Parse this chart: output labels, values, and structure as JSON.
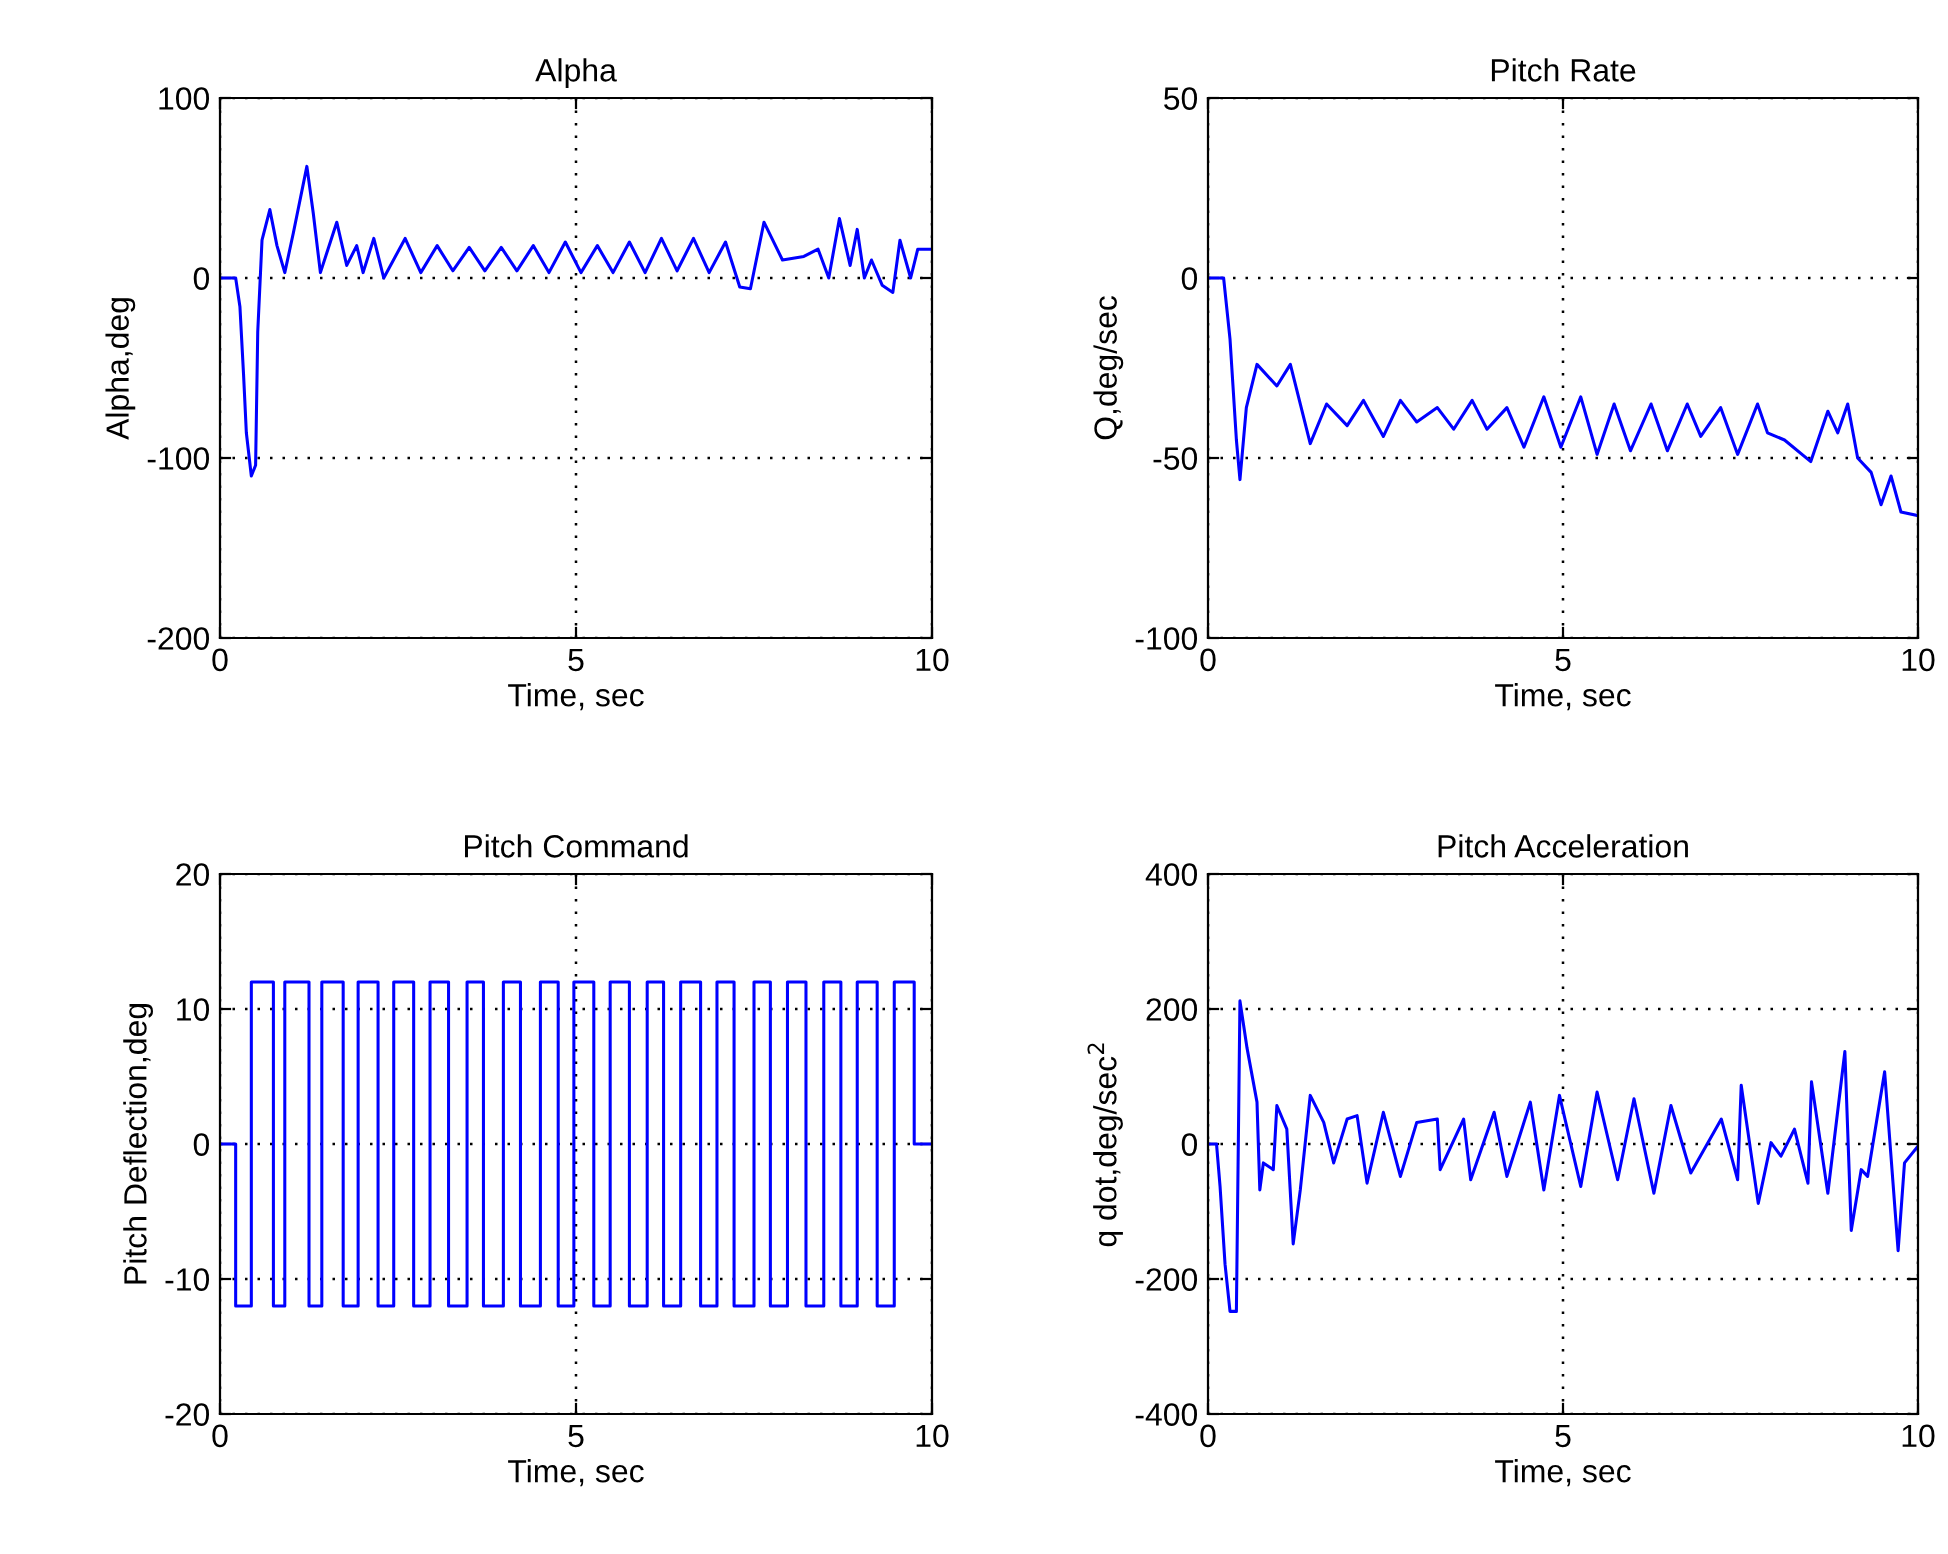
{
  "chart_data": [
    {
      "type": "line",
      "title": "Alpha",
      "xlabel": "Time, sec",
      "ylabel": "Alpha,deg",
      "xlim": [
        0,
        10
      ],
      "xticks": [
        0,
        5,
        10
      ],
      "ylim": [
        -200,
        100
      ],
      "yticks": [
        -200,
        -100,
        0,
        100
      ],
      "grid": true,
      "series": [
        {
          "color": "#0000ff",
          "x": [
            0,
            0.22,
            0.28,
            0.33,
            0.37,
            0.44,
            0.5,
            0.53,
            0.59,
            0.7,
            0.8,
            0.91,
            1.03,
            1.22,
            1.31,
            1.41,
            1.64,
            1.78,
            1.92,
            2.01,
            2.16,
            2.3,
            2.6,
            2.82,
            3.05,
            3.27,
            3.5,
            3.72,
            3.95,
            4.17,
            4.4,
            4.62,
            4.85,
            5.07,
            5.3,
            5.52,
            5.75,
            5.97,
            6.2,
            6.42,
            6.65,
            6.87,
            7.1,
            7.3,
            7.45,
            7.64,
            7.9,
            8.2,
            8.4,
            8.55,
            8.7,
            8.85,
            8.95,
            9.05,
            9.15,
            9.3,
            9.45,
            9.55,
            9.7,
            9.8,
            10
          ],
          "values": [
            0,
            0,
            -16,
            -53,
            -86,
            -110,
            -104,
            -30,
            21,
            38,
            18,
            3,
            25,
            62,
            36,
            3,
            31,
            7,
            18,
            3,
            22,
            0,
            22,
            3,
            18,
            4,
            17,
            4,
            17,
            4,
            18,
            3,
            20,
            3,
            18,
            3,
            20,
            3,
            22,
            4,
            22,
            3,
            20,
            -5,
            -6,
            31,
            10,
            12,
            16,
            0,
            33,
            7,
            27,
            0,
            10,
            -4,
            -8,
            21,
            0,
            16,
            16
          ]
        }
      ]
    },
    {
      "type": "line",
      "title": "Pitch Rate",
      "xlabel": "Time, sec",
      "ylabel": "Q,deg/sec",
      "xlim": [
        0,
        10
      ],
      "xticks": [
        0,
        5,
        10
      ],
      "ylim": [
        -100,
        50
      ],
      "yticks": [
        -100,
        -50,
        0,
        50
      ],
      "grid": true,
      "series": [
        {
          "color": "#0000ff",
          "x": [
            0,
            0.22,
            0.31,
            0.4,
            0.45,
            0.54,
            0.69,
            0.97,
            1.16,
            1.44,
            1.67,
            1.96,
            2.19,
            2.47,
            2.71,
            2.94,
            3.23,
            3.46,
            3.72,
            3.93,
            4.21,
            4.45,
            4.73,
            4.97,
            5.25,
            5.48,
            5.72,
            5.95,
            6.24,
            6.47,
            6.75,
            6.94,
            7.22,
            7.46,
            7.74,
            7.88,
            8.12,
            8.49,
            8.73,
            8.87,
            9.01,
            9.15,
            9.34,
            9.48,
            9.62,
            9.76,
            10
          ],
          "values": [
            0,
            0,
            -17,
            -45,
            -56,
            -36,
            -24,
            -30,
            -24,
            -46,
            -35,
            -41,
            -34,
            -44,
            -34,
            -40,
            -36,
            -42,
            -34,
            -42,
            -36,
            -47,
            -33,
            -47,
            -33,
            -49,
            -35,
            -48,
            -35,
            -48,
            -35,
            -44,
            -36,
            -49,
            -35,
            -43,
            -45,
            -51,
            -37,
            -43,
            -35,
            -50,
            -54,
            -63,
            -55,
            -65,
            -66
          ]
        }
      ]
    },
    {
      "type": "step",
      "title": "Pitch Command",
      "xlabel": "Time, sec",
      "ylabel": "Pitch Deflection,deg",
      "xlim": [
        0,
        10
      ],
      "xticks": [
        0,
        5,
        10
      ],
      "ylim": [
        -20,
        20
      ],
      "yticks": [
        -20,
        -10,
        0,
        10,
        20
      ],
      "grid": true,
      "series": [
        {
          "color": "#0000ff",
          "x": [
            0,
            0.22,
            0.44,
            0.75,
            0.91,
            1.25,
            1.43,
            1.73,
            1.94,
            2.22,
            2.44,
            2.72,
            2.95,
            3.21,
            3.47,
            3.7,
            3.98,
            4.22,
            4.5,
            4.75,
            4.97,
            5.25,
            5.48,
            5.75,
            6.0,
            6.23,
            6.47,
            6.75,
            6.98,
            7.22,
            7.5,
            7.73,
            7.97,
            8.23,
            8.48,
            8.72,
            8.95,
            9.23,
            9.47,
            9.75,
            10
          ],
          "values": [
            0,
            -12,
            12,
            -12,
            12,
            -12,
            12,
            -12,
            12,
            -12,
            12,
            -12,
            12,
            -12,
            12,
            -12,
            12,
            -12,
            12,
            -12,
            12,
            -12,
            12,
            -12,
            12,
            -12,
            12,
            -12,
            12,
            -12,
            12,
            -12,
            12,
            -12,
            12,
            -12,
            12,
            -12,
            12,
            0,
            0
          ]
        }
      ]
    },
    {
      "type": "line",
      "title": "Pitch Acceleration",
      "xlabel": "Time, sec",
      "ylabel": "q dot,deg/sec$^{2}$",
      "xlim": [
        0,
        10
      ],
      "xticks": [
        0,
        5,
        10
      ],
      "ylim": [
        -400,
        400
      ],
      "yticks": [
        -400,
        -200,
        0,
        200,
        400
      ],
      "grid": true,
      "series": [
        {
          "color": "#0000ff",
          "x": [
            0,
            0.12,
            0.17,
            0.24,
            0.31,
            0.4,
            0.45,
            0.55,
            0.69,
            0.73,
            0.78,
            0.92,
            0.97,
            1.11,
            1.2,
            1.3,
            1.44,
            1.63,
            1.77,
            1.96,
            2.1,
            2.24,
            2.47,
            2.71,
            2.94,
            3.23,
            3.27,
            3.6,
            3.7,
            4.03,
            4.21,
            4.54,
            4.73,
            4.95,
            5.25,
            5.48,
            5.77,
            6.0,
            6.28,
            6.52,
            6.8,
            7.23,
            7.46,
            7.51,
            7.75,
            7.93,
            8.07,
            8.26,
            8.45,
            8.5,
            8.73,
            8.97,
            9.06,
            9.2,
            9.29,
            9.53,
            9.72,
            9.81,
            10
          ],
          "values": [
            0,
            0,
            -63,
            -178,
            -248,
            -248,
            212,
            142,
            62,
            -68,
            -28,
            -38,
            57,
            22,
            -148,
            -68,
            72,
            32,
            -28,
            37,
            42,
            -58,
            47,
            -48,
            32,
            37,
            -38,
            37,
            -53,
            47,
            -48,
            62,
            -68,
            72,
            -63,
            77,
            -53,
            67,
            -73,
            57,
            -43,
            37,
            -53,
            87,
            -88,
            2,
            -18,
            22,
            -58,
            92,
            -73,
            137,
            -128,
            -38,
            -48,
            107,
            -158,
            -28,
            -3
          ]
        }
      ]
    }
  ]
}
